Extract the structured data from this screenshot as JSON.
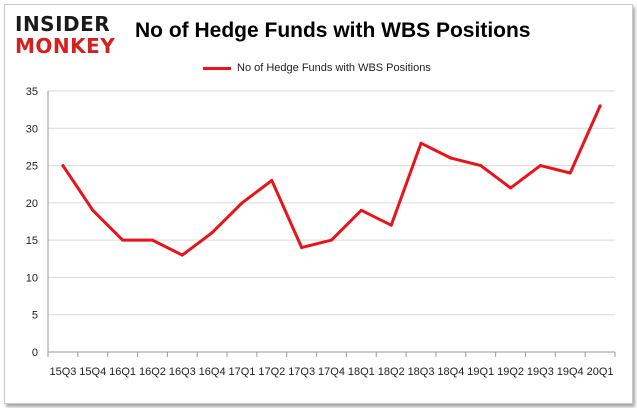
{
  "brand": {
    "line1": "INSIDER",
    "line2": "MONKEY"
  },
  "chart_data": {
    "type": "line",
    "title": "No of Hedge Funds with WBS Positions",
    "xlabel": "",
    "ylabel": "",
    "categories": [
      "15Q3",
      "15Q4",
      "16Q1",
      "16Q2",
      "16Q3",
      "16Q4",
      "17Q1",
      "17Q2",
      "17Q3",
      "17Q4",
      "18Q1",
      "18Q2",
      "18Q3",
      "18Q4",
      "19Q1",
      "19Q2",
      "19Q3",
      "19Q4",
      "20Q1"
    ],
    "series": [
      {
        "name": "No of Hedge Funds with WBS Positions",
        "values": [
          25,
          19,
          15,
          15,
          13,
          16,
          20,
          23,
          14,
          15,
          19,
          17,
          28,
          26,
          25,
          22,
          25,
          24,
          33
        ]
      }
    ],
    "ylim": [
      0,
      35
    ],
    "yticks": [
      0,
      5,
      10,
      15,
      20,
      25,
      30,
      35
    ],
    "grid": true,
    "legend": "top-center",
    "colors": {
      "line": "#e8141c",
      "grid": "#d9d9d9",
      "axis": "#9a9a9a"
    }
  }
}
